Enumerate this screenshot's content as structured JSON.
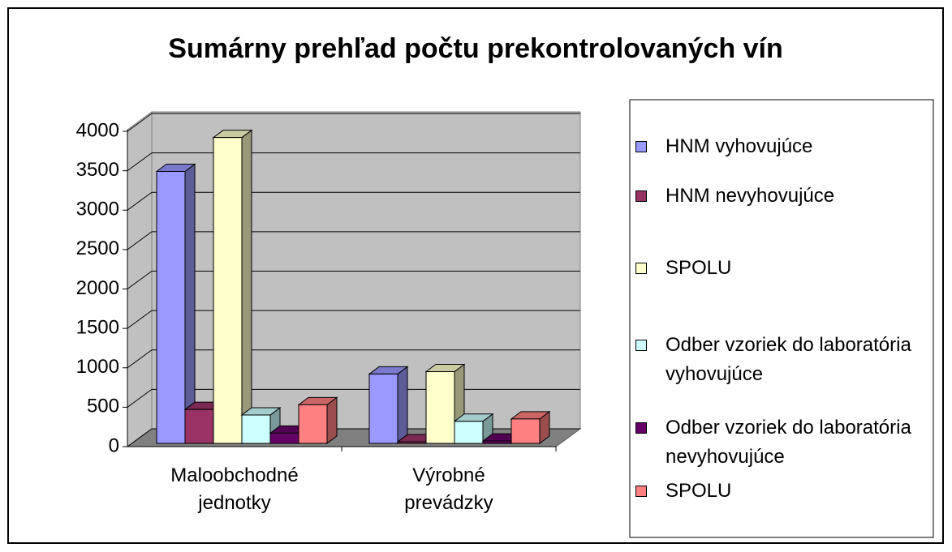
{
  "chart_data": {
    "type": "bar3d",
    "title": "Sumárny prehľad počtu prekontrolovaných vín",
    "categories": [
      "Maloobchodné jednotky",
      "Výrobné prevádzky"
    ],
    "series": [
      {
        "name": "HNM vyhovujúce",
        "color": "#9999ff",
        "values": [
          3450,
          880
        ]
      },
      {
        "name": "HNM nevyhovujúce",
        "color": "#993366",
        "values": [
          430,
          20
        ]
      },
      {
        "name": "SPOLU",
        "color": "#ffffcc",
        "values": [
          3880,
          910
        ]
      },
      {
        "name": "Odber vzoriek do laboratória vyhovujúce",
        "color": "#ccffff",
        "values": [
          360,
          280
        ]
      },
      {
        "name": "Odber vzoriek do laboratória nevyhovujúce",
        "color": "#660066",
        "values": [
          130,
          30
        ]
      },
      {
        "name": "SPOLU",
        "color": "#ff8080",
        "values": [
          490,
          310
        ]
      }
    ],
    "ylim": [
      0,
      4000
    ],
    "yticks": [
      0,
      500,
      1000,
      1500,
      2000,
      2500,
      3000,
      3500,
      4000
    ],
    "grid": true,
    "legend": "right"
  }
}
